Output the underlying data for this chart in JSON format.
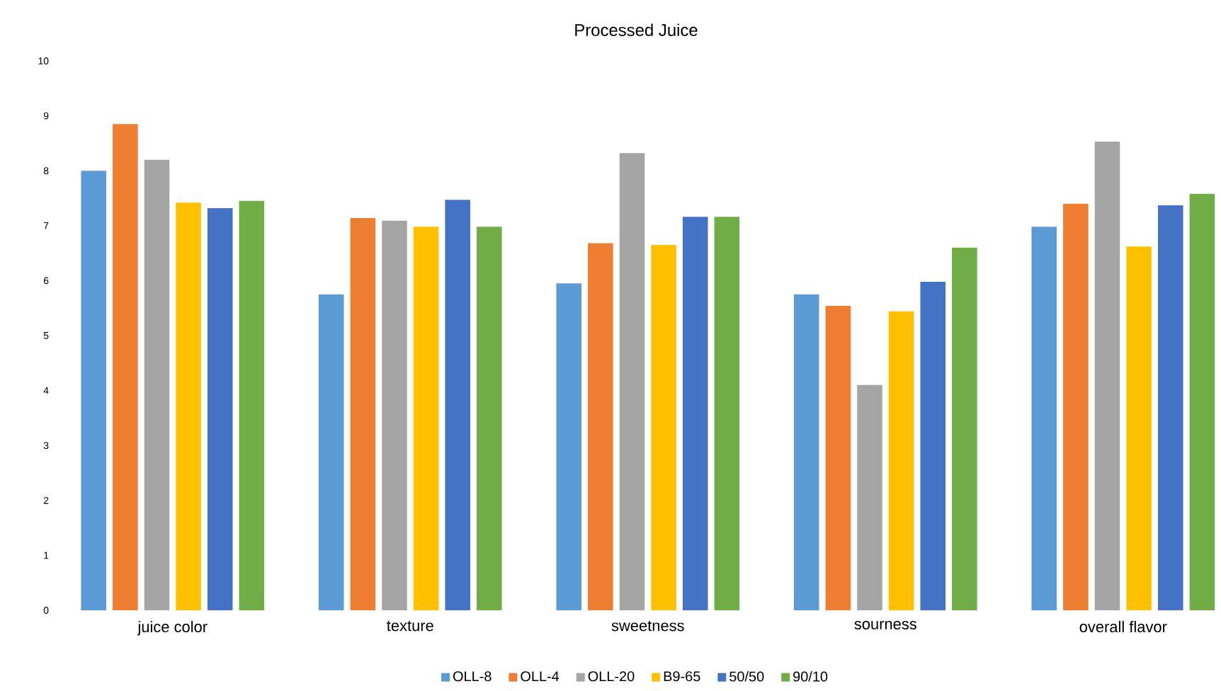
{
  "chart_data": {
    "type": "bar",
    "title": "Processed Juice",
    "categories": [
      "juice color",
      "texture",
      "sweetness",
      "sourness",
      "overall flavor"
    ],
    "series": [
      {
        "name": "OLL-8",
        "color": "#5b9bd5",
        "values": [
          8.0,
          5.75,
          5.95,
          5.75,
          6.98
        ]
      },
      {
        "name": "OLL-4",
        "color": "#ed7d31",
        "values": [
          8.85,
          7.14,
          6.68,
          5.54,
          7.4
        ]
      },
      {
        "name": "OLL-20",
        "color": "#a5a5a5",
        "values": [
          8.2,
          7.09,
          8.32,
          4.1,
          8.53
        ]
      },
      {
        "name": "B9-65",
        "color": "#ffc000",
        "values": [
          7.42,
          6.98,
          6.65,
          5.44,
          6.62
        ]
      },
      {
        "name": "50/50",
        "color": "#4472c4",
        "values": [
          7.32,
          7.47,
          7.16,
          5.98,
          7.37
        ]
      },
      {
        "name": "90/10",
        "color": "#70ad47",
        "values": [
          7.45,
          6.98,
          7.16,
          6.6,
          7.58
        ]
      }
    ],
    "ylim": [
      0,
      10
    ],
    "yticks": [
      0,
      1,
      2,
      3,
      4,
      5,
      6,
      7,
      8,
      9,
      10
    ],
    "legend": "bottom",
    "grid": false
  }
}
